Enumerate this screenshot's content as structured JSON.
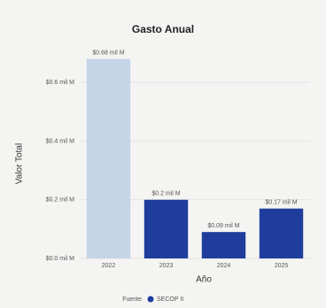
{
  "chart_data": {
    "type": "bar",
    "title": "Gasto Anual",
    "categories": [
      "2022",
      "2023",
      "2024",
      "2025"
    ],
    "values": [
      0.68,
      0.2,
      0.09,
      0.17
    ],
    "value_labels": [
      "$0.68 mil M",
      "$0.2 mil M",
      "$0.09 mil M",
      "$0.17 mil M"
    ],
    "colors": [
      "#c6d4e8",
      "#1f3d9c",
      "#1f3d9c",
      "#1f3d9c"
    ],
    "ylim": [
      0,
      0.7
    ],
    "yticks": [
      {
        "value": 0,
        "label": "$0.0 mil M"
      },
      {
        "value": 0.2,
        "label": "$0.2 mil M"
      },
      {
        "value": 0.4,
        "label": "$0.4 mil M"
      },
      {
        "value": 0.6,
        "label": "$0.6 mil M"
      }
    ],
    "grid": true,
    "x_label": "Año",
    "y_label": "Valor Total",
    "legend_title": "Fuente",
    "legend_entry": "SECOP II",
    "legend_color": "#1f3d9c"
  }
}
